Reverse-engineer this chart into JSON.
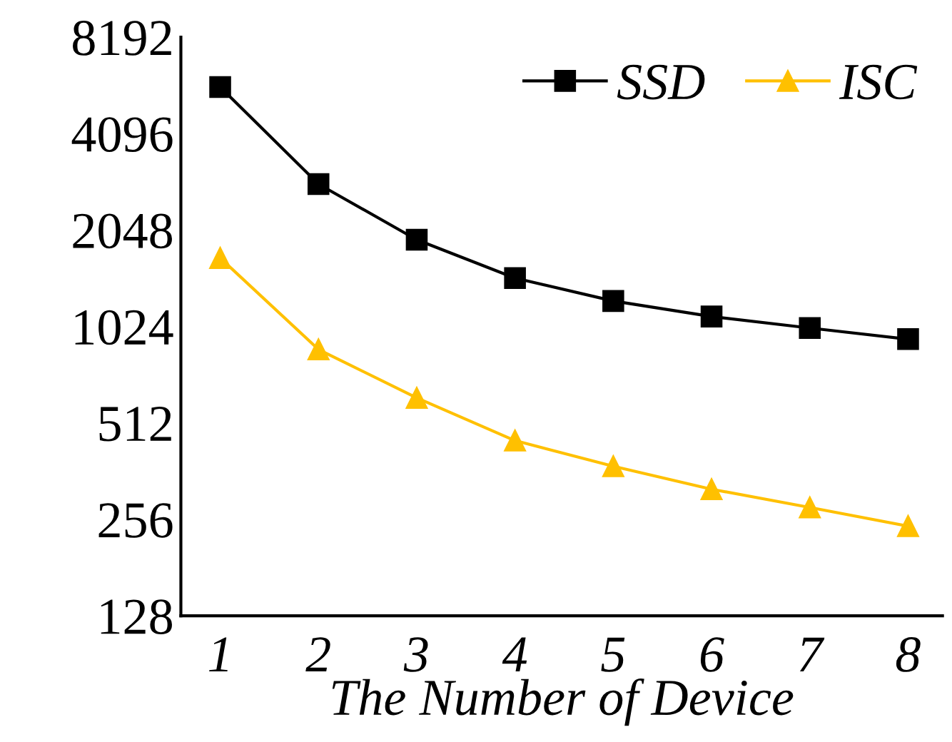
{
  "chart_data": {
    "type": "line",
    "xlabel": "The Number of Device",
    "categories": [
      "1",
      "2",
      "3",
      "4",
      "5",
      "6",
      "7",
      "8"
    ],
    "series": [
      {
        "name": "SSD",
        "color": "#000000",
        "marker": "square",
        "values": [
          5720,
          2850,
          1910,
          1450,
          1230,
          1100,
          1013,
          935
        ]
      },
      {
        "name": "ISC",
        "color": "#ffc000",
        "marker": "triangle",
        "values": [
          1675,
          868,
          613,
          451,
          375,
          318,
          279,
          244
        ]
      }
    ],
    "log": "y",
    "ylim": [
      128,
      8192
    ],
    "yticks": [
      128,
      256,
      512,
      1024,
      2048,
      4096,
      8192
    ],
    "legend": "top right",
    "grid": false,
    "line_style": "solid"
  }
}
